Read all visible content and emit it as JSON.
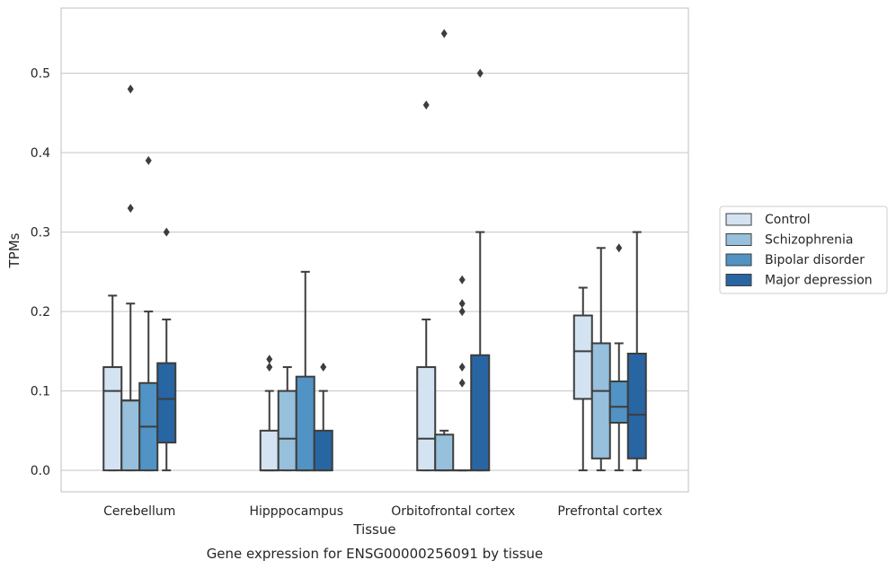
{
  "chart_data": {
    "type": "box",
    "title": "Gene expression for ENSG00000256091 by tissue",
    "xlabel": "Tissue",
    "ylabel": "TPMs",
    "categories": [
      "Cerebellum",
      "Hipppocampus",
      "Orbitofrontal cortex",
      "Prefrontal cortex"
    ],
    "ylim": [
      -0.027,
      0.582
    ],
    "yticks": [
      0.0,
      0.1,
      0.2,
      0.3,
      0.4,
      0.5
    ],
    "ytick_labels": [
      "0.0",
      "0.1",
      "0.2",
      "0.3",
      "0.4",
      "0.5"
    ],
    "grid": "horizontal",
    "legend_position": "right",
    "series": [
      {
        "name": "Control",
        "color": "#d4e3f1",
        "boxes": [
          {
            "low": 0.0,
            "q1": 0.0,
            "median": 0.1,
            "q3": 0.13,
            "high": 0.22,
            "outliers": []
          },
          {
            "low": 0.0,
            "q1": 0.0,
            "median": 0.0,
            "q3": 0.05,
            "high": 0.1,
            "outliers": [
              0.13,
              0.14
            ]
          },
          {
            "low": 0.0,
            "q1": 0.0,
            "median": 0.04,
            "q3": 0.13,
            "high": 0.19,
            "outliers": [
              0.46
            ]
          },
          {
            "low": 0.0,
            "q1": 0.09,
            "median": 0.15,
            "q3": 0.195,
            "high": 0.23,
            "outliers": []
          }
        ]
      },
      {
        "name": "Schizophrenia",
        "color": "#96c0dc",
        "boxes": [
          {
            "low": 0.0,
            "q1": 0.0,
            "median": 0.088,
            "q3": 0.088,
            "high": 0.21,
            "outliers": [
              0.33,
              0.48
            ]
          },
          {
            "low": 0.0,
            "q1": 0.0,
            "median": 0.04,
            "q3": 0.1,
            "high": 0.13,
            "outliers": []
          },
          {
            "low": 0.0,
            "q1": 0.0,
            "median": 0.0,
            "q3": 0.045,
            "high": 0.05,
            "outliers": [
              0.55
            ]
          },
          {
            "low": 0.0,
            "q1": 0.015,
            "median": 0.1,
            "q3": 0.16,
            "high": 0.28,
            "outliers": []
          }
        ]
      },
      {
        "name": "Bipolar disorder",
        "color": "#5093c4",
        "boxes": [
          {
            "low": 0.0,
            "q1": 0.0,
            "median": 0.055,
            "q3": 0.11,
            "high": 0.2,
            "outliers": [
              0.39
            ]
          },
          {
            "low": 0.0,
            "q1": 0.0,
            "median": 0.0,
            "q3": 0.118,
            "high": 0.25,
            "outliers": []
          },
          {
            "low": 0.0,
            "q1": 0.0,
            "median": 0.0,
            "q3": 0.0,
            "high": 0.0,
            "outliers": [
              0.11,
              0.13,
              0.2,
              0.21,
              0.24
            ]
          },
          {
            "low": 0.0,
            "q1": 0.06,
            "median": 0.08,
            "q3": 0.112,
            "high": 0.16,
            "outliers": [
              0.28
            ]
          }
        ]
      },
      {
        "name": "Major depression",
        "color": "#2865a3",
        "boxes": [
          {
            "low": 0.0,
            "q1": 0.035,
            "median": 0.09,
            "q3": 0.135,
            "high": 0.19,
            "outliers": [
              0.3
            ]
          },
          {
            "low": 0.0,
            "q1": 0.0,
            "median": 0.0,
            "q3": 0.05,
            "high": 0.1,
            "outliers": [
              0.13
            ]
          },
          {
            "low": 0.0,
            "q1": 0.0,
            "median": 0.0,
            "q3": 0.145,
            "high": 0.3,
            "outliers": [
              0.5
            ]
          },
          {
            "low": 0.0,
            "q1": 0.015,
            "median": 0.07,
            "q3": 0.147,
            "high": 0.3,
            "outliers": []
          }
        ]
      }
    ]
  }
}
